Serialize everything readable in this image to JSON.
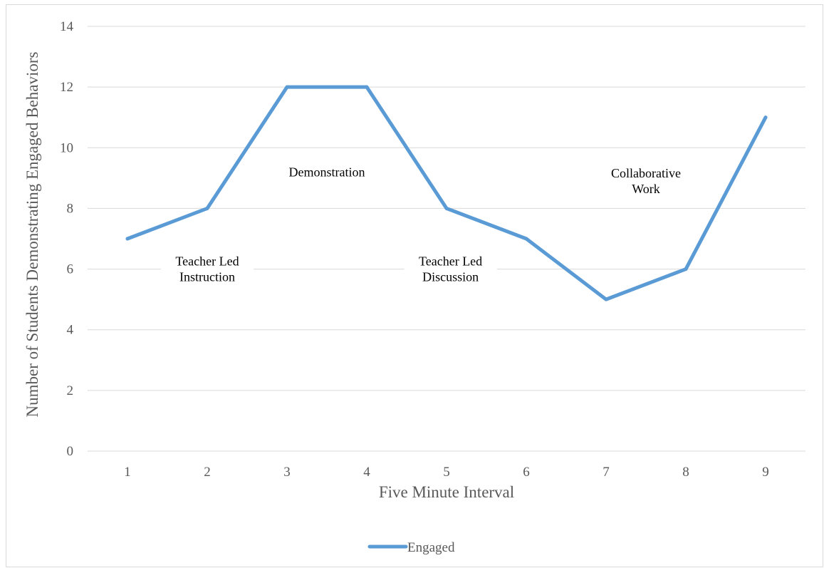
{
  "chart_data": {
    "type": "line",
    "title": "",
    "xlabel": "Five Minute Interval",
    "ylabel": "Number of Students Demonstrating Engaged Behaviors",
    "categories": [
      "1",
      "2",
      "3",
      "4",
      "5",
      "6",
      "7",
      "8",
      "9"
    ],
    "ylim": [
      0,
      14
    ],
    "yticks": [
      "0",
      "2",
      "4",
      "6",
      "8",
      "10",
      "12",
      "14"
    ],
    "grid": true,
    "legend_position": "bottom",
    "series": [
      {
        "name": "Engaged",
        "color": "#5b9bd5",
        "values": [
          7,
          8,
          12,
          12,
          8,
          7,
          5,
          6,
          11
        ]
      }
    ],
    "annotations": [
      {
        "lines": [
          "Teacher Led",
          "Instruction"
        ],
        "x": 2.0,
        "y": 6.0
      },
      {
        "lines": [
          "Demonstration"
        ],
        "x": 3.5,
        "y": 9.2
      },
      {
        "lines": [
          "Teacher Led",
          "Discussion"
        ],
        "x": 5.05,
        "y": 6.0
      },
      {
        "lines": [
          "Collaborative",
          "Work"
        ],
        "x": 7.5,
        "y": 8.9
      }
    ]
  }
}
